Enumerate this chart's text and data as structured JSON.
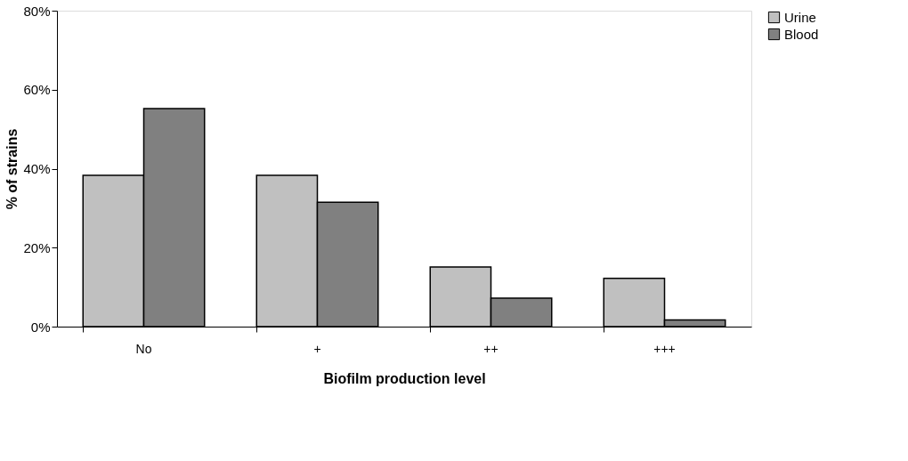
{
  "chart_data": {
    "type": "bar",
    "xlabel": "Biofilm production level",
    "ylabel": "% of strains",
    "categories": [
      "No",
      "+",
      "++",
      "+++"
    ],
    "series": [
      {
        "name": "Urine",
        "color": "#c0c0c0",
        "values": [
          38.3,
          38.3,
          15.1,
          12.2
        ]
      },
      {
        "name": "Blood",
        "color": "#808080",
        "values": [
          55.2,
          31.5,
          7.2,
          1.7
        ]
      }
    ],
    "ylim": [
      0,
      80
    ],
    "yticks": [
      {
        "value": 0,
        "label": "0%"
      },
      {
        "value": 20,
        "label": "20%"
      },
      {
        "value": 40,
        "label": "40%"
      },
      {
        "value": 60,
        "label": "60%"
      },
      {
        "value": 80,
        "label": "80%"
      }
    ],
    "grid": false,
    "legend": "right"
  }
}
